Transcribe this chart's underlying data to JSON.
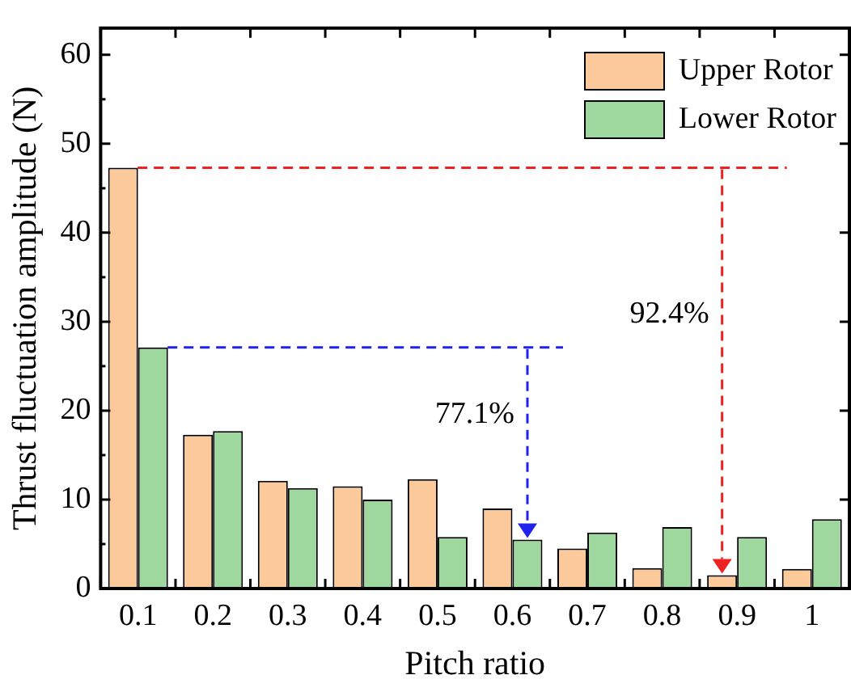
{
  "chart_data": {
    "type": "bar",
    "xlabel": "Pitch ratio",
    "ylabel": "Thrust fluctuation amplitude (N)",
    "categories": [
      "0.1",
      "0.2",
      "0.3",
      "0.4",
      "0.5",
      "0.6",
      "0.7",
      "0.8",
      "0.9",
      "1"
    ],
    "series": [
      {
        "name": "Upper Rotor",
        "color": "#fbc99a",
        "values": [
          47.3,
          17.3,
          12.1,
          11.5,
          12.3,
          9.0,
          4.5,
          2.3,
          1.5,
          2.2
        ]
      },
      {
        "name": "Lower Rotor",
        "color": "#9ed89f",
        "values": [
          27.1,
          17.7,
          11.3,
          10.0,
          5.8,
          5.5,
          6.3,
          6.9,
          5.8,
          7.8
        ]
      }
    ],
    "ylim": [
      0,
      63
    ],
    "yticks": [
      0,
      10,
      20,
      30,
      40,
      50,
      60
    ],
    "grid": false,
    "legend": "top right",
    "ref_lines": [
      {
        "axis": "y",
        "value": 27.1,
        "color": "#2222ee",
        "line_style": "dashed"
      },
      {
        "axis": "y",
        "value": 47.3,
        "color": "#ee2222",
        "line_style": "dashed"
      }
    ],
    "annotations": [
      "77.1%",
      "92.4%"
    ]
  }
}
